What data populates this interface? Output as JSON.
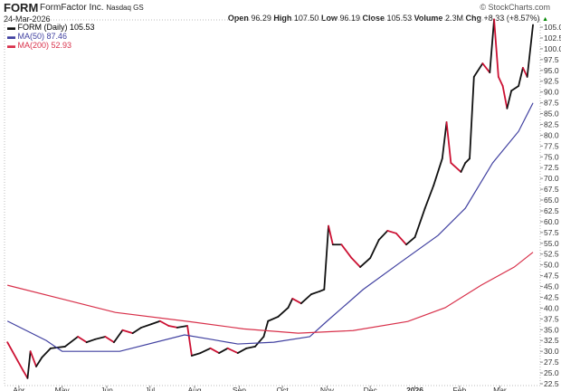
{
  "header": {
    "symbol": "FORM",
    "company": "FormFactor Inc.",
    "exchange": "Nasdaq GS",
    "watermark": "© StockCharts.com",
    "date": "24-Mar-2026",
    "open_label": "Open",
    "open": "96.29",
    "high_label": "High",
    "high": "107.50",
    "low_label": "Low",
    "low": "96.19",
    "close_label": "Close",
    "close": "105.53",
    "volume_label": "Volume",
    "volume": "2.3M",
    "chg_label": "Chg",
    "chg": "+8.33 (+8.57%)",
    "chg_arrow": "▲"
  },
  "colors": {
    "up": "#111111",
    "down": "#cc1133",
    "ma50": "#4040a0",
    "ma200": "#d8304a"
  },
  "chart_data": {
    "type": "line",
    "ylim": [
      22.5,
      107.5
    ],
    "yticks": [
      "22.5",
      "25.0",
      "27.5",
      "30.0",
      "32.5",
      "35.0",
      "37.5",
      "40.0",
      "42.5",
      "45.0",
      "47.5",
      "50.0",
      "52.5",
      "55.0",
      "57.5",
      "60.0",
      "62.5",
      "65.0",
      "67.5",
      "70.0",
      "72.5",
      "75.0",
      "77.5",
      "80.0",
      "82.5",
      "85.0",
      "87.5",
      "90.0",
      "92.5",
      "95.0",
      "97.5",
      "100.0",
      "102.5",
      "105.0"
    ],
    "xticks": [
      {
        "label": "Apr",
        "date": "2025-04-01"
      },
      {
        "label": "May",
        "date": "2025-05-01"
      },
      {
        "label": "Jun",
        "date": "2025-06-01"
      },
      {
        "label": "Jul",
        "date": "2025-07-01"
      },
      {
        "label": "Aug",
        "date": "2025-08-01"
      },
      {
        "label": "Sep",
        "date": "2025-09-01"
      },
      {
        "label": "Oct",
        "date": "2025-10-01"
      },
      {
        "label": "Nov",
        "date": "2025-11-01"
      },
      {
        "label": "Dec",
        "date": "2025-12-01"
      },
      {
        "label": "2026",
        "date": "2026-01-01",
        "bold": true
      },
      {
        "label": "Feb",
        "date": "2026-02-01"
      },
      {
        "label": "Mar",
        "date": "2026-03-01"
      }
    ],
    "legend": [
      {
        "label": "FORM (Daily) 105.53",
        "series": "price"
      },
      {
        "label": "MA(50) 87.46",
        "series": "ma50"
      },
      {
        "label": "MA(200) 52.93",
        "series": "ma200"
      }
    ],
    "series": [
      {
        "name": "FORM (Daily)",
        "key": "price",
        "points": [
          [
            "2025-03-24",
            32.1
          ],
          [
            "2025-04-04",
            25.5
          ],
          [
            "2025-04-07",
            23.8
          ],
          [
            "2025-04-09",
            30.0
          ],
          [
            "2025-04-13",
            26.5
          ],
          [
            "2025-04-17",
            28.6
          ],
          [
            "2025-04-23",
            30.7
          ],
          [
            "2025-05-03",
            31.1
          ],
          [
            "2025-05-12",
            33.4
          ],
          [
            "2025-05-18",
            32.1
          ],
          [
            "2025-05-24",
            32.8
          ],
          [
            "2025-05-31",
            33.4
          ],
          [
            "2025-06-06",
            32.1
          ],
          [
            "2025-06-12",
            34.9
          ],
          [
            "2025-06-19",
            34.2
          ],
          [
            "2025-06-25",
            35.5
          ],
          [
            "2025-07-02",
            36.3
          ],
          [
            "2025-07-08",
            37.0
          ],
          [
            "2025-07-14",
            35.9
          ],
          [
            "2025-07-20",
            35.5
          ],
          [
            "2025-07-27",
            35.9
          ],
          [
            "2025-07-30",
            29.0
          ],
          [
            "2025-08-05",
            29.6
          ],
          [
            "2025-08-12",
            30.7
          ],
          [
            "2025-08-18",
            29.6
          ],
          [
            "2025-08-24",
            30.7
          ],
          [
            "2025-08-31",
            29.6
          ],
          [
            "2025-09-06",
            30.7
          ],
          [
            "2025-09-12",
            31.1
          ],
          [
            "2025-09-18",
            33.4
          ],
          [
            "2025-09-21",
            37.0
          ],
          [
            "2025-09-28",
            38.0
          ],
          [
            "2025-10-05",
            40.1
          ],
          [
            "2025-10-08",
            42.2
          ],
          [
            "2025-10-14",
            41.1
          ],
          [
            "2025-10-21",
            43.2
          ],
          [
            "2025-10-27",
            43.9
          ],
          [
            "2025-10-30",
            44.3
          ],
          [
            "2025-11-02",
            59.0
          ],
          [
            "2025-11-05",
            54.7
          ],
          [
            "2025-11-11",
            54.7
          ],
          [
            "2025-11-18",
            51.6
          ],
          [
            "2025-11-24",
            49.5
          ],
          [
            "2025-12-01",
            51.6
          ],
          [
            "2025-12-07",
            55.8
          ],
          [
            "2025-12-13",
            57.9
          ],
          [
            "2025-12-19",
            57.3
          ],
          [
            "2025-12-26",
            54.7
          ],
          [
            "2026-01-01",
            56.4
          ],
          [
            "2026-01-08",
            63.1
          ],
          [
            "2026-01-14",
            68.4
          ],
          [
            "2026-01-20",
            74.6
          ],
          [
            "2026-01-23",
            83.0
          ],
          [
            "2026-01-26",
            73.6
          ],
          [
            "2026-02-02",
            71.5
          ],
          [
            "2026-02-05",
            73.6
          ],
          [
            "2026-02-08",
            74.6
          ],
          [
            "2026-02-11",
            93.5
          ],
          [
            "2026-02-17",
            96.6
          ],
          [
            "2026-02-22",
            94.5
          ],
          [
            "2026-02-25",
            106.8
          ],
          [
            "2026-02-28",
            93.5
          ],
          [
            "2026-03-03",
            91.4
          ],
          [
            "2026-03-06",
            86.2
          ],
          [
            "2026-03-09",
            90.3
          ],
          [
            "2026-03-14",
            91.4
          ],
          [
            "2026-03-17",
            95.6
          ],
          [
            "2026-03-20",
            93.5
          ],
          [
            "2026-03-24",
            105.53
          ]
        ]
      },
      {
        "name": "MA(50)",
        "key": "ma50",
        "points": [
          [
            "2025-03-24",
            37.0
          ],
          [
            "2025-04-20",
            32.5
          ],
          [
            "2025-05-01",
            30.0
          ],
          [
            "2025-06-10",
            30.0
          ],
          [
            "2025-07-25",
            33.8
          ],
          [
            "2025-08-12",
            32.8
          ],
          [
            "2025-08-31",
            31.7
          ],
          [
            "2025-09-25",
            32.1
          ],
          [
            "2025-10-20",
            33.4
          ],
          [
            "2025-11-01",
            37.0
          ],
          [
            "2025-11-26",
            44.3
          ],
          [
            "2025-12-22",
            50.6
          ],
          [
            "2026-01-17",
            56.8
          ],
          [
            "2026-02-05",
            63.1
          ],
          [
            "2026-02-24",
            73.6
          ],
          [
            "2026-03-14",
            80.9
          ],
          [
            "2026-03-24",
            87.46
          ]
        ]
      },
      {
        "name": "MA(200)",
        "key": "ma200",
        "points": [
          [
            "2025-03-24",
            45.3
          ],
          [
            "2025-04-30",
            42.2
          ],
          [
            "2025-06-07",
            39.0
          ],
          [
            "2025-07-28",
            36.9
          ],
          [
            "2025-09-04",
            35.2
          ],
          [
            "2025-10-12",
            34.2
          ],
          [
            "2025-11-19",
            34.8
          ],
          [
            "2025-12-27",
            36.9
          ],
          [
            "2026-01-22",
            40.1
          ],
          [
            "2026-02-16",
            45.3
          ],
          [
            "2026-03-11",
            49.5
          ],
          [
            "2026-03-24",
            52.93
          ]
        ]
      }
    ]
  }
}
